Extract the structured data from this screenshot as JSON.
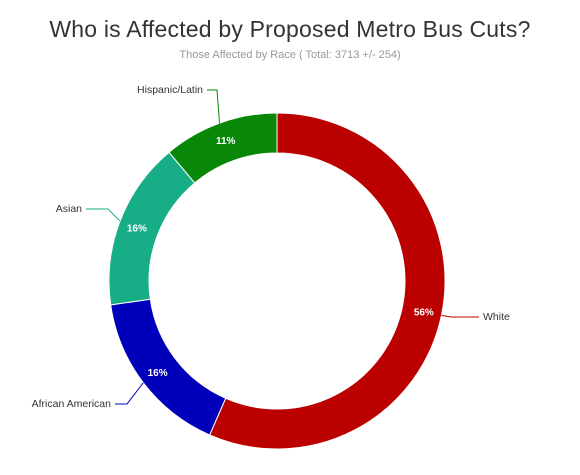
{
  "chart_data": {
    "type": "pie",
    "title": "Who is Affected by Proposed Metro Bus Cuts?",
    "subtitle": "Those Affected by Race ( Total: 3713 +/- 254)",
    "style": "donut",
    "slices": [
      {
        "name": "White",
        "value": 56,
        "label": "56%",
        "color": "#bb0000"
      },
      {
        "name": "African American",
        "value": 16,
        "label": "16%",
        "color": "#0000bb"
      },
      {
        "name": "Asian",
        "value": 16,
        "label": "16%",
        "color": "#17ad86"
      },
      {
        "name": "Hispanic/Latin",
        "value": 11,
        "label": "11%",
        "color": "#098709"
      }
    ]
  }
}
